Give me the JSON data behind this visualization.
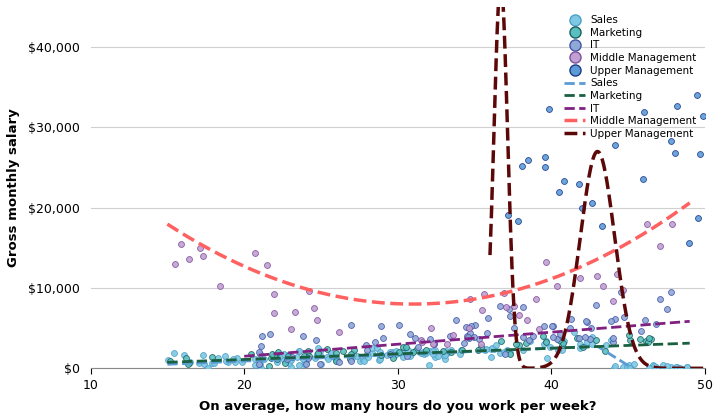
{
  "xlabel": "On average, how many hours do you work per week?",
  "ylabel": "Gross monthly salary",
  "xlim": [
    10,
    50
  ],
  "ylim": [
    0,
    45000
  ],
  "xticks": [
    10,
    20,
    30,
    40,
    50
  ],
  "yticks": [
    0,
    10000,
    20000,
    30000,
    40000
  ],
  "ytick_labels": [
    "$0",
    "$10,000",
    "$20,000",
    "$30,000",
    "$40,000"
  ],
  "dot_fill": "#6FB3E0",
  "dot_colors": {
    "Sales": {
      "fill": "#7EC8E3",
      "edge": "#5B9BD5"
    },
    "Marketing": {
      "fill": "#5BBFBF",
      "edge": "#1F7A7A"
    },
    "IT": {
      "fill": "#8FA8D5",
      "edge": "#5568B8"
    },
    "Middle Management": {
      "fill": "#C0A0D0",
      "edge": "#9060B0"
    },
    "Upper Management": {
      "fill": "#5B9BD5",
      "edge": "#2F5597"
    }
  },
  "line_colors": {
    "Sales": "#5B9BD5",
    "Marketing": "#1A6060",
    "IT": "#8B008B",
    "Middle Management": "#FF6B6B",
    "Upper Management": "#5C0A0A"
  },
  "background_color": "#ffffff",
  "grid_color": "#d0d0d0"
}
